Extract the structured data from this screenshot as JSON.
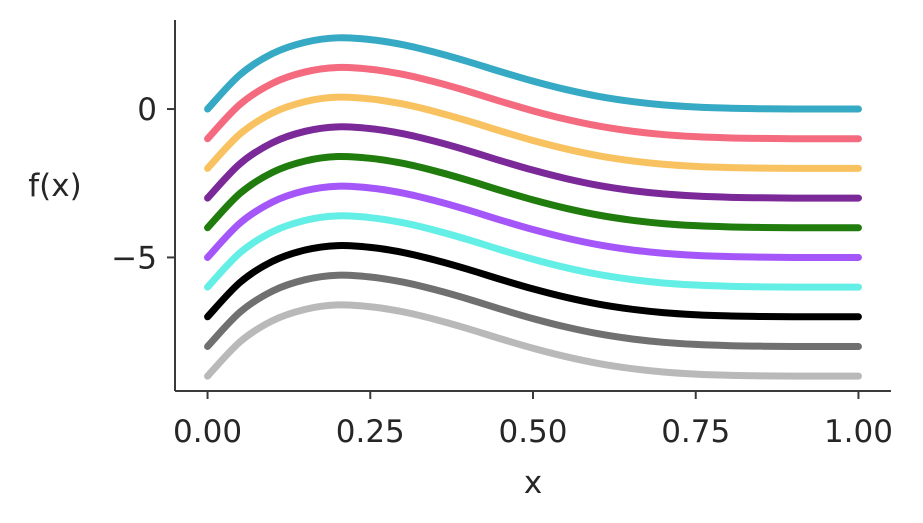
{
  "chart_data": {
    "type": "line",
    "title": "",
    "xlabel": "x",
    "ylabel": "f(x)",
    "xlim": [
      -0.05,
      1.05
    ],
    "ylim": [
      -9.5,
      3.0
    ],
    "xticks": [
      0.0,
      0.25,
      0.5,
      0.75,
      1.0
    ],
    "xtick_labels": [
      "0.00",
      "0.25",
      "0.50",
      "0.75",
      "1.00"
    ],
    "yticks": [
      0,
      -5
    ],
    "ytick_labels": [
      "0",
      "−5"
    ],
    "grid": false,
    "legend": "none",
    "x": [
      0.0,
      0.05,
      0.1,
      0.15,
      0.2,
      0.25,
      0.3,
      0.35,
      0.4,
      0.45,
      0.5,
      0.55,
      0.6,
      0.65,
      0.7,
      0.75,
      0.8,
      0.85,
      0.9,
      0.95,
      1.0
    ],
    "shape": [
      0.0,
      1.16,
      1.87,
      2.25,
      2.4,
      2.34,
      2.17,
      1.91,
      1.6,
      1.26,
      0.94,
      0.66,
      0.43,
      0.26,
      0.14,
      0.07,
      0.03,
      0.01,
      0.0,
      0.0,
      0.0
    ],
    "series": [
      {
        "offset": 0,
        "color": "#36a9c4"
      },
      {
        "offset": -1,
        "color": "#f46b7f"
      },
      {
        "offset": -2,
        "color": "#f9c261"
      },
      {
        "offset": -3,
        "color": "#7b2898"
      },
      {
        "offset": -4,
        "color": "#1f7c0d"
      },
      {
        "offset": -5,
        "color": "#a456f9"
      },
      {
        "offset": -6,
        "color": "#63efe6"
      },
      {
        "offset": -7,
        "color": "#000000"
      },
      {
        "offset": -8,
        "color": "#707070"
      },
      {
        "offset": -9,
        "color": "#b9b9b9"
      }
    ]
  }
}
